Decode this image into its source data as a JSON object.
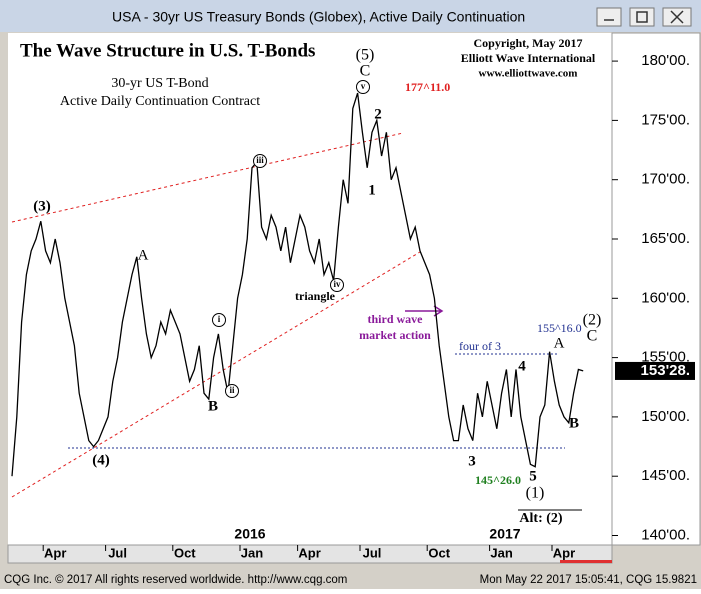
{
  "window": {
    "title": "USA - 30yr US Treasury Bonds (Globex), Active Daily Continuation",
    "footer_left": "CQG Inc. © 2017 All rights reserved worldwide. http://www.cqg.com",
    "footer_right": "Mon May 22 2017 15:05:41, CQG 15.9821"
  },
  "chart_data": {
    "type": "line",
    "color": "#000000",
    "categories": [
      null,
      null,
      null,
      null,
      null,
      null,
      null,
      null,
      null,
      "Apr",
      null,
      null,
      null,
      null,
      null,
      null,
      null,
      null,
      null,
      null,
      null,
      null,
      "Jul",
      null,
      null,
      null,
      null,
      null,
      null,
      null,
      null,
      null,
      null,
      null,
      null,
      null,
      "Oct",
      null,
      null,
      null,
      null,
      null,
      null,
      null,
      null,
      null,
      null,
      null,
      null,
      null,
      "Jan",
      null,
      null,
      null,
      null,
      null,
      null,
      null,
      null,
      null,
      null,
      null,
      "Apr",
      null,
      null,
      null,
      null,
      null,
      null,
      null,
      null,
      null,
      null,
      null,
      null,
      "Jul",
      null,
      null,
      null,
      null,
      null,
      null,
      null,
      null,
      null,
      null,
      null,
      null,
      null,
      "Oct",
      null,
      null,
      null,
      null,
      null,
      null,
      null,
      null,
      null,
      null,
      null,
      null,
      "Jan",
      null,
      null,
      null,
      null,
      null,
      null,
      null,
      null,
      null,
      null,
      null,
      null,
      "Apr",
      null,
      null,
      null,
      null
    ],
    "year_labels": [
      "2016",
      "2017"
    ],
    "values": [
      145,
      150,
      158,
      162,
      164,
      165,
      166.5,
      164,
      163,
      165,
      163,
      160,
      158,
      156,
      152,
      150,
      148,
      147.5,
      148,
      149,
      150,
      153,
      155,
      158,
      160,
      162,
      163.5,
      160,
      157,
      155,
      156,
      158,
      157,
      159,
      158,
      157,
      155,
      153,
      154,
      156,
      152,
      151.5,
      155,
      157,
      154,
      152,
      156,
      160,
      162,
      165,
      171,
      171.5,
      166,
      165,
      167,
      166,
      164,
      166,
      163,
      165,
      167,
      166,
      164,
      163,
      165,
      162,
      163,
      161.5,
      166,
      170,
      168,
      176,
      177.3,
      174,
      171,
      174,
      175,
      172,
      174,
      170,
      171,
      169,
      167,
      165,
      166,
      164,
      163,
      162,
      160,
      156,
      153,
      150,
      148,
      148,
      151,
      149,
      148,
      152,
      150,
      153,
      151,
      149,
      152,
      154,
      150,
      154,
      150,
      148,
      146,
      145.8,
      150,
      151,
      155.5,
      153,
      151,
      150,
      149.5,
      152,
      154,
      153.875
    ],
    "ylim": [
      139.2,
      182.2
    ],
    "yticks": [
      {
        "value": 140,
        "label": "140'00."
      },
      {
        "value": 145,
        "label": "145'00."
      },
      {
        "value": 150,
        "label": "150'00."
      },
      {
        "value": 155,
        "label": "155'00."
      },
      {
        "value": 160,
        "label": "160'00."
      },
      {
        "value": 165,
        "label": "165'00."
      },
      {
        "value": 170,
        "label": "170'00."
      },
      {
        "value": 175,
        "label": "175'00."
      },
      {
        "value": 180,
        "label": "180'00."
      }
    ],
    "last_price": {
      "value": 153.875,
      "label": "153'28."
    },
    "annotations": [
      "The Wave Structure in U.S. T-Bonds",
      "(5)",
      "C",
      "Copyright, May 2017",
      "Elliott Wave International",
      "www.elliottwave.com",
      "30-yr US T-Bond",
      "Active Daily Continuation Contract",
      "177^11.0",
      "2",
      "1",
      "(3)",
      "A",
      "triangle",
      "third wave",
      "market action",
      "155^16.0",
      "four of 3",
      "(2)",
      "C",
      "A",
      "4",
      "B",
      "B",
      "(4)",
      "3",
      "5",
      "145^26.0",
      "(1)",
      "Alt: (2)"
    ],
    "wave_circles": [
      "v",
      "iii",
      "i",
      "ii",
      "iv"
    ]
  }
}
